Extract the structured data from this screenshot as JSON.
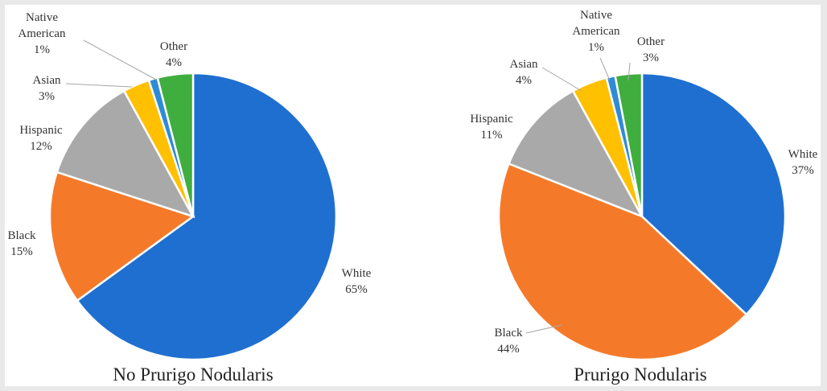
{
  "chart_data": [
    {
      "type": "pie",
      "title": "No Prurigo Nodularis",
      "categories": [
        "White",
        "Black",
        "Hispanic",
        "Asian",
        "Native American",
        "Other"
      ],
      "values": [
        65,
        15,
        12,
        3,
        1,
        4
      ],
      "value_labels": [
        "65%",
        "15%",
        "12%",
        "3%",
        "1%",
        "4%"
      ],
      "label_lines": [
        [
          "White"
        ],
        [
          "Black"
        ],
        [
          "Hispanic"
        ],
        [
          "Asian"
        ],
        [
          "Native",
          "American"
        ],
        [
          "Other"
        ]
      ],
      "colors": [
        "#1f6fd1",
        "#f47a2a",
        "#a9a9a9",
        "#ffc000",
        "#2e8bd6",
        "#3fae3f"
      ],
      "start": "12 o'clock",
      "direction": "clockwise"
    },
    {
      "type": "pie",
      "title": "Prurigo Nodularis",
      "categories": [
        "White",
        "Black",
        "Hispanic",
        "Asian",
        "Native American",
        "Other"
      ],
      "values": [
        37,
        44,
        11,
        4,
        1,
        3
      ],
      "value_labels": [
        "37%",
        "44%",
        "11%",
        "4%",
        "1%",
        "3%"
      ],
      "label_lines": [
        [
          "White"
        ],
        [
          "Black"
        ],
        [
          "Hispanic"
        ],
        [
          "Asian"
        ],
        [
          "Native",
          "American"
        ],
        [
          "Other"
        ]
      ],
      "colors": [
        "#1f6fd1",
        "#f47a2a",
        "#a9a9a9",
        "#ffc000",
        "#2e8bd6",
        "#3fae3f"
      ],
      "start": "12 o'clock",
      "direction": "clockwise"
    }
  ]
}
